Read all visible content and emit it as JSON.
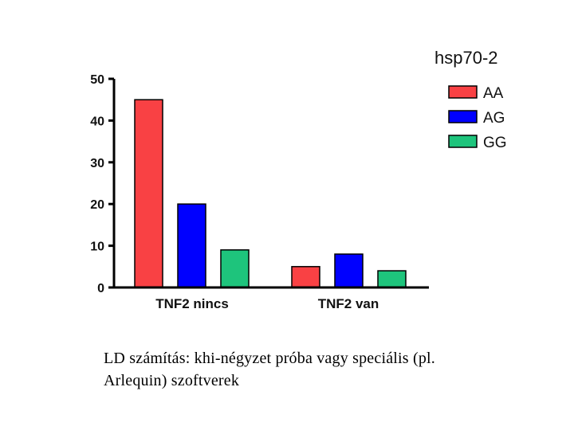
{
  "chart_data": {
    "type": "bar",
    "title": "hsp70-2",
    "categories": [
      "TNF2 nincs",
      "TNF2 van"
    ],
    "series": [
      {
        "name": "AA",
        "values": [
          45,
          5
        ],
        "color": "#f94144"
      },
      {
        "name": "AG",
        "values": [
          20,
          8
        ],
        "color": "#0000ff"
      },
      {
        "name": "GG",
        "values": [
          9,
          4
        ],
        "color": "#1ec47c"
      }
    ],
    "ylim": [
      0,
      50
    ],
    "yticks": [
      "0",
      "10",
      "20",
      "30",
      "40",
      "50"
    ],
    "legend_position": "top-right",
    "grid": false
  },
  "caption": {
    "line1": "LD számítás: khi-négyzet próba vagy speciális (pl.",
    "line2": "Arlequin) szoftverek"
  }
}
